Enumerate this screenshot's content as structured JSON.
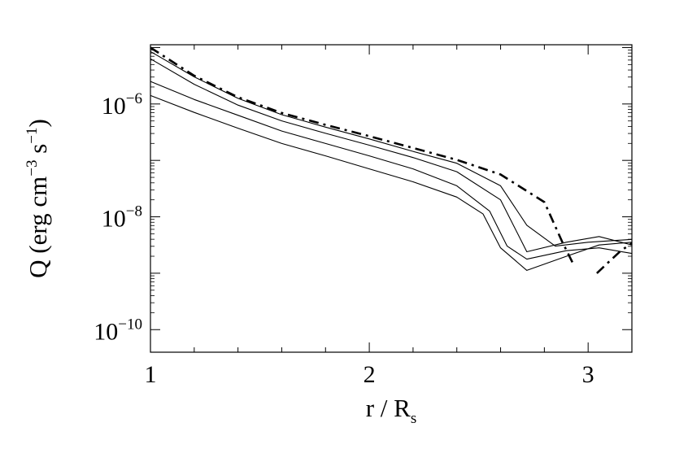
{
  "chart_data": {
    "type": "line",
    "xlabel": {
      "main": "r / R",
      "sub": "s"
    },
    "ylabel": {
      "main": "Q (erg cm",
      "exp1": "−3",
      "mid": " s",
      "exp2": "−1",
      "close": ")"
    },
    "xlim": [
      1.0,
      3.2
    ],
    "ylim_log10": [
      -10.4,
      -4.95
    ],
    "y_scale": "log",
    "x_ticks": [
      {
        "value": 1,
        "label": "1"
      },
      {
        "value": 2,
        "label": "2"
      },
      {
        "value": 3,
        "label": "3"
      }
    ],
    "y_ticks": [
      {
        "log10": -6,
        "base": "10",
        "exp": "−6"
      },
      {
        "log10": -8,
        "base": "10",
        "exp": "−8"
      },
      {
        "log10": -10,
        "base": "10",
        "exp": "−10"
      }
    ],
    "grid": false,
    "legend": "none",
    "series": [
      {
        "style": "dash-dot",
        "segments": [
          [
            [
              1.0,
              -5.0
            ],
            [
              1.2,
              -5.5
            ],
            [
              1.4,
              -5.88
            ],
            [
              1.6,
              -6.16
            ],
            [
              1.8,
              -6.37
            ],
            [
              2.0,
              -6.57
            ],
            [
              2.2,
              -6.78
            ],
            [
              2.4,
              -6.99
            ],
            [
              2.6,
              -7.25
            ],
            [
              2.8,
              -7.74
            ],
            [
              2.88,
              -8.43
            ],
            [
              2.93,
              -8.82
            ]
          ],
          [
            [
              3.04,
              -9.0
            ],
            [
              3.1,
              -8.78
            ],
            [
              3.15,
              -8.6
            ],
            [
              3.2,
              -8.47
            ]
          ]
        ]
      },
      {
        "style": "solid",
        "segments": [
          [
            [
              1.0,
              -5.07
            ],
            [
              1.2,
              -5.52
            ],
            [
              1.4,
              -5.9
            ],
            [
              1.6,
              -6.19
            ],
            [
              1.8,
              -6.41
            ],
            [
              2.0,
              -6.62
            ],
            [
              2.2,
              -6.84
            ],
            [
              2.4,
              -7.05
            ],
            [
              2.6,
              -7.45
            ],
            [
              2.72,
              -8.15
            ],
            [
              2.85,
              -8.52
            ],
            [
              3.0,
              -8.45
            ],
            [
              3.2,
              -8.4
            ]
          ]
        ]
      },
      {
        "style": "solid",
        "segments": [
          [
            [
              1.0,
              -5.2
            ],
            [
              1.2,
              -5.65
            ],
            [
              1.4,
              -6.02
            ],
            [
              1.6,
              -6.3
            ],
            [
              1.8,
              -6.52
            ],
            [
              2.0,
              -6.73
            ],
            [
              2.2,
              -6.95
            ],
            [
              2.4,
              -7.2
            ],
            [
              2.6,
              -7.7
            ],
            [
              2.72,
              -8.62
            ],
            [
              2.9,
              -8.45
            ],
            [
              3.05,
              -8.35
            ],
            [
              3.2,
              -8.5
            ]
          ]
        ]
      },
      {
        "style": "solid",
        "segments": [
          [
            [
              1.0,
              -5.6
            ],
            [
              1.2,
              -5.92
            ],
            [
              1.4,
              -6.2
            ],
            [
              1.6,
              -6.48
            ],
            [
              1.8,
              -6.7
            ],
            [
              2.0,
              -6.92
            ],
            [
              2.2,
              -7.15
            ],
            [
              2.4,
              -7.45
            ],
            [
              2.55,
              -7.9
            ],
            [
              2.63,
              -8.52
            ],
            [
              2.72,
              -8.75
            ],
            [
              2.9,
              -8.6
            ],
            [
              3.05,
              -8.55
            ],
            [
              3.2,
              -8.65
            ]
          ]
        ]
      },
      {
        "style": "solid",
        "segments": [
          [
            [
              1.0,
              -5.85
            ],
            [
              1.2,
              -6.15
            ],
            [
              1.4,
              -6.43
            ],
            [
              1.6,
              -6.7
            ],
            [
              1.8,
              -6.92
            ],
            [
              2.0,
              -7.15
            ],
            [
              2.2,
              -7.38
            ],
            [
              2.4,
              -7.65
            ],
            [
              2.52,
              -7.95
            ],
            [
              2.6,
              -8.55
            ],
            [
              2.72,
              -8.95
            ],
            [
              2.9,
              -8.7
            ],
            [
              3.05,
              -8.5
            ],
            [
              3.2,
              -8.45
            ]
          ]
        ]
      }
    ]
  }
}
